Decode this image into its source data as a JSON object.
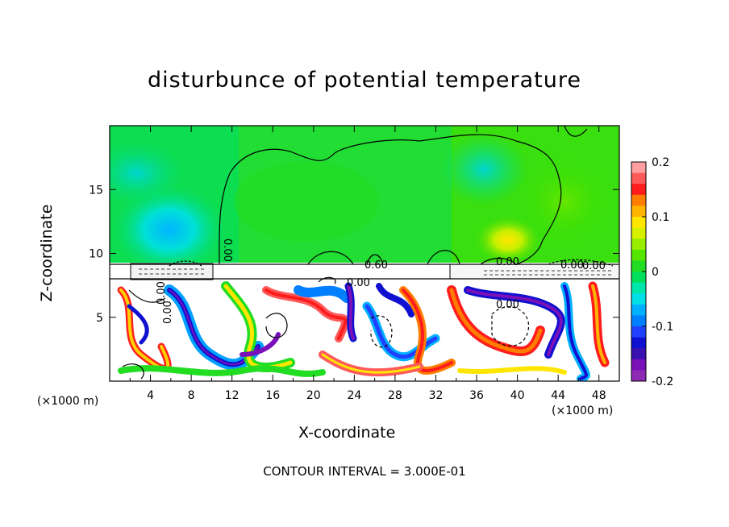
{
  "chart_data": {
    "type": "heatmap",
    "title": "disturbunce of potential temperature",
    "xlabel": "X-coordinate",
    "ylabel": "Z-coordinate",
    "x_unit_label": "(×1000 m)",
    "xlim": [
      0,
      50
    ],
    "ylim": [
      0,
      20
    ],
    "x_ticks": [
      4,
      8,
      12,
      16,
      20,
      24,
      28,
      32,
      36,
      40,
      44,
      48
    ],
    "y_ticks": [
      5,
      10,
      15
    ],
    "colorbar": {
      "range": [
        -0.2,
        0.2
      ],
      "tick_values": [
        0.2,
        0.1,
        0,
        -0.1,
        -0.2
      ],
      "tick_labels": [
        "0.2",
        "0.1",
        "0",
        "-0.1",
        "-0.2"
      ],
      "colors": [
        "#ff9f9f",
        "#ff5a5a",
        "#ff1c1c",
        "#ff7d00",
        "#ffb400",
        "#ffe600",
        "#d7f000",
        "#99ee00",
        "#55e600",
        "#22dd22",
        "#00e05a",
        "#00e6aa",
        "#00e0e6",
        "#00b0ff",
        "#0080ff",
        "#2040ff",
        "#1010d0",
        "#3a10b0",
        "#7a10b8",
        "#8c2ab4"
      ]
    },
    "contour_labels": [
      "0.00",
      "0.60",
      "0.00",
      "0.00",
      "0.00",
      "0.00",
      "0.00",
      "0.00",
      "0.00"
    ],
    "footer": "CONTOUR INTERVAL = 3.000E-01"
  }
}
